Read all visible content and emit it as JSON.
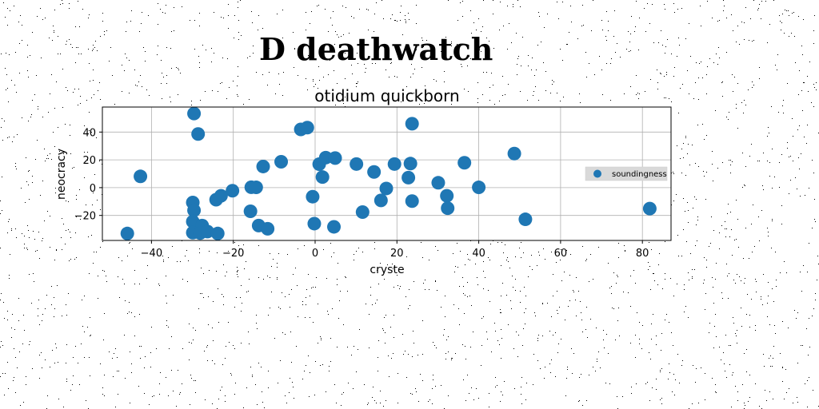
{
  "page": {
    "title": "D deathwatch"
  },
  "chart_data": {
    "type": "scatter",
    "title": "otidium quickborn",
    "xlabel": "cryste",
    "ylabel": "neocracy",
    "xlim": [
      -52,
      87
    ],
    "ylim": [
      -38,
      58
    ],
    "xticks": [
      -40,
      -20,
      0,
      20,
      40,
      60,
      80
    ],
    "yticks": [
      -20,
      0,
      20,
      40
    ],
    "tick_labels_x": [
      "−40",
      "−20",
      "0",
      "20",
      "40",
      "60",
      "80"
    ],
    "tick_labels_y": [
      "−20",
      "0",
      "20",
      "40"
    ],
    "grid": true,
    "legend": {
      "position": "center-right",
      "entries": [
        "soundingness"
      ]
    },
    "series": [
      {
        "name": "soundingness",
        "color": "#1f77b4",
        "points": [
          {
            "x": -29.6,
            "y": 53.3
          },
          {
            "x": -28.6,
            "y": 38.6
          },
          {
            "x": -42.7,
            "y": 8.1
          },
          {
            "x": -45.9,
            "y": -33.0
          },
          {
            "x": -29.9,
            "y": -10.7
          },
          {
            "x": -29.6,
            "y": -16.4
          },
          {
            "x": -29.9,
            "y": -24.4
          },
          {
            "x": -27.6,
            "y": -27.3
          },
          {
            "x": -29.9,
            "y": -32.4
          },
          {
            "x": -28.1,
            "y": -32.7
          },
          {
            "x": -26.3,
            "y": -31.6
          },
          {
            "x": -23.8,
            "y": -33.0
          },
          {
            "x": -24.2,
            "y": -8.7
          },
          {
            "x": -23.0,
            "y": -5.9
          },
          {
            "x": -20.2,
            "y": -2.2
          },
          {
            "x": -15.8,
            "y": -17.0
          },
          {
            "x": -15.6,
            "y": 0.3
          },
          {
            "x": -14.4,
            "y": 0.2
          },
          {
            "x": -13.8,
            "y": -27.3
          },
          {
            "x": -11.6,
            "y": -29.6
          },
          {
            "x": -12.7,
            "y": 15.2
          },
          {
            "x": -8.3,
            "y": 18.6
          },
          {
            "x": -3.5,
            "y": 41.9
          },
          {
            "x": -1.9,
            "y": 43.2
          },
          {
            "x": 23.7,
            "y": 46.0
          },
          {
            "x": 48.7,
            "y": 24.5
          },
          {
            "x": -0.6,
            "y": -6.5
          },
          {
            "x": 1.0,
            "y": 16.9
          },
          {
            "x": 2.6,
            "y": 21.6
          },
          {
            "x": 4.9,
            "y": 21.3
          },
          {
            "x": 1.8,
            "y": 7.6
          },
          {
            "x": -0.2,
            "y": -25.9
          },
          {
            "x": 4.6,
            "y": -28.2
          },
          {
            "x": 10.1,
            "y": 17.0
          },
          {
            "x": 11.6,
            "y": -17.6
          },
          {
            "x": 14.4,
            "y": 11.3
          },
          {
            "x": 16.1,
            "y": -9.2
          },
          {
            "x": 17.4,
            "y": -0.6
          },
          {
            "x": 19.4,
            "y": 17.0
          },
          {
            "x": 22.8,
            "y": 7.2
          },
          {
            "x": 23.3,
            "y": 17.3
          },
          {
            "x": 23.7,
            "y": -9.7
          },
          {
            "x": 30.1,
            "y": 3.5
          },
          {
            "x": 32.2,
            "y": -5.9
          },
          {
            "x": 32.4,
            "y": -14.8
          },
          {
            "x": 36.5,
            "y": 17.9
          },
          {
            "x": 40.0,
            "y": 0.2
          },
          {
            "x": 51.4,
            "y": -22.8
          },
          {
            "x": 81.8,
            "y": -15.1
          }
        ]
      }
    ]
  }
}
